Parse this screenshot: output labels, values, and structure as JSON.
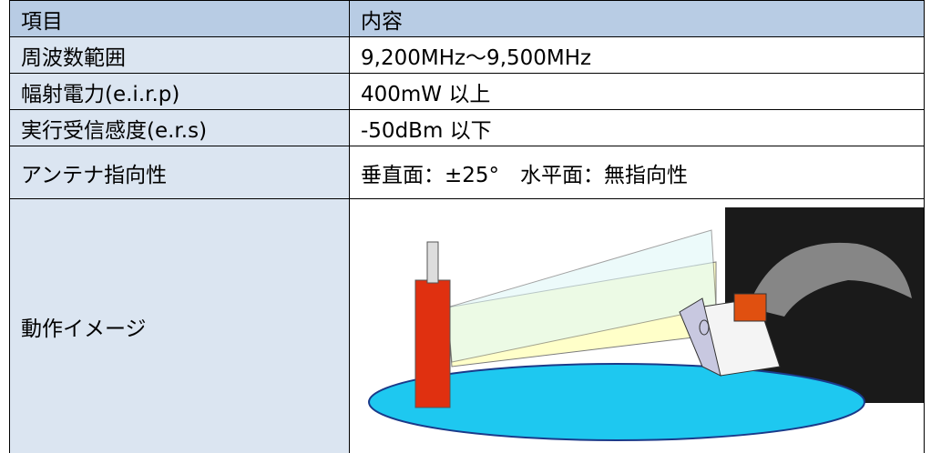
{
  "table": {
    "header": [
      "項目",
      "内容"
    ],
    "rows": [
      [
        "周波数範囲",
        "9,200MHz～9,500MHz"
      ],
      [
        "幅射電力(e.i.r.p)",
        "400mW 以上"
      ],
      [
        "実行受信感度(e.r.s)",
        "-50dBm 以下"
      ],
      [
        "アンテナ指向性",
        "垂直面：±25°　水平面：無指向性"
      ],
      [
        "動作イメージ"
      ]
    ]
  }
}
